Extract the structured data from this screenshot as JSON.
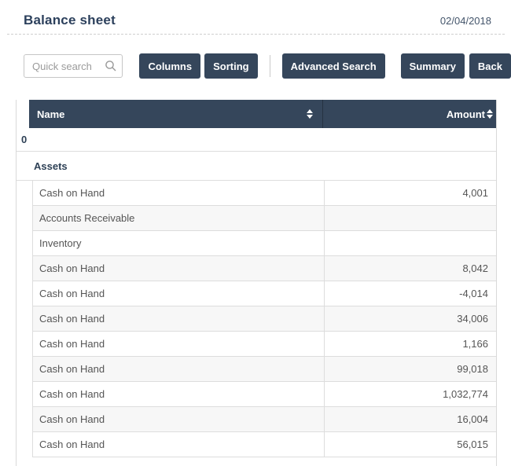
{
  "page": {
    "title": "Balance sheet",
    "date": "02/04/2018"
  },
  "toolbar": {
    "search": {
      "placeholder": "Quick search",
      "value": ""
    },
    "buttons": [
      {
        "label": "Columns"
      },
      {
        "label": "Sorting"
      },
      {
        "label": "Advanced Search"
      },
      {
        "label": "Summary"
      },
      {
        "label": "Back"
      }
    ]
  },
  "table": {
    "columns": [
      {
        "label": "Name",
        "sortable": true
      },
      {
        "label": "Amount",
        "sortable": true
      }
    ],
    "tree_rows": [
      {
        "label": "0",
        "level": 0
      },
      {
        "label": "Assets",
        "level": 1
      }
    ],
    "rows": [
      {
        "name": "Cash on Hand",
        "amount": "4,001"
      },
      {
        "name": "Accounts Receivable",
        "amount": ""
      },
      {
        "name": "Inventory",
        "amount": ""
      },
      {
        "name": "Cash on Hand",
        "amount": "8,042"
      },
      {
        "name": "Cash on Hand",
        "amount": "-4,014"
      },
      {
        "name": "Cash on Hand",
        "amount": "34,006"
      },
      {
        "name": "Cash on Hand",
        "amount": "1,166"
      },
      {
        "name": "Cash on Hand",
        "amount": "99,018"
      },
      {
        "name": "Cash on Hand",
        "amount": "1,032,774"
      },
      {
        "name": "Cash on Hand",
        "amount": "16,004"
      },
      {
        "name": "Cash on Hand",
        "amount": "56,015"
      }
    ]
  },
  "icons": {
    "search": "magnifier",
    "column_sort": "up-down-arrows"
  },
  "colors": {
    "accent": "#35465b",
    "header_bg": "#35465b",
    "title_text": "#2c405c",
    "stripe": "#f7f7f7",
    "border": "#dddddd"
  }
}
